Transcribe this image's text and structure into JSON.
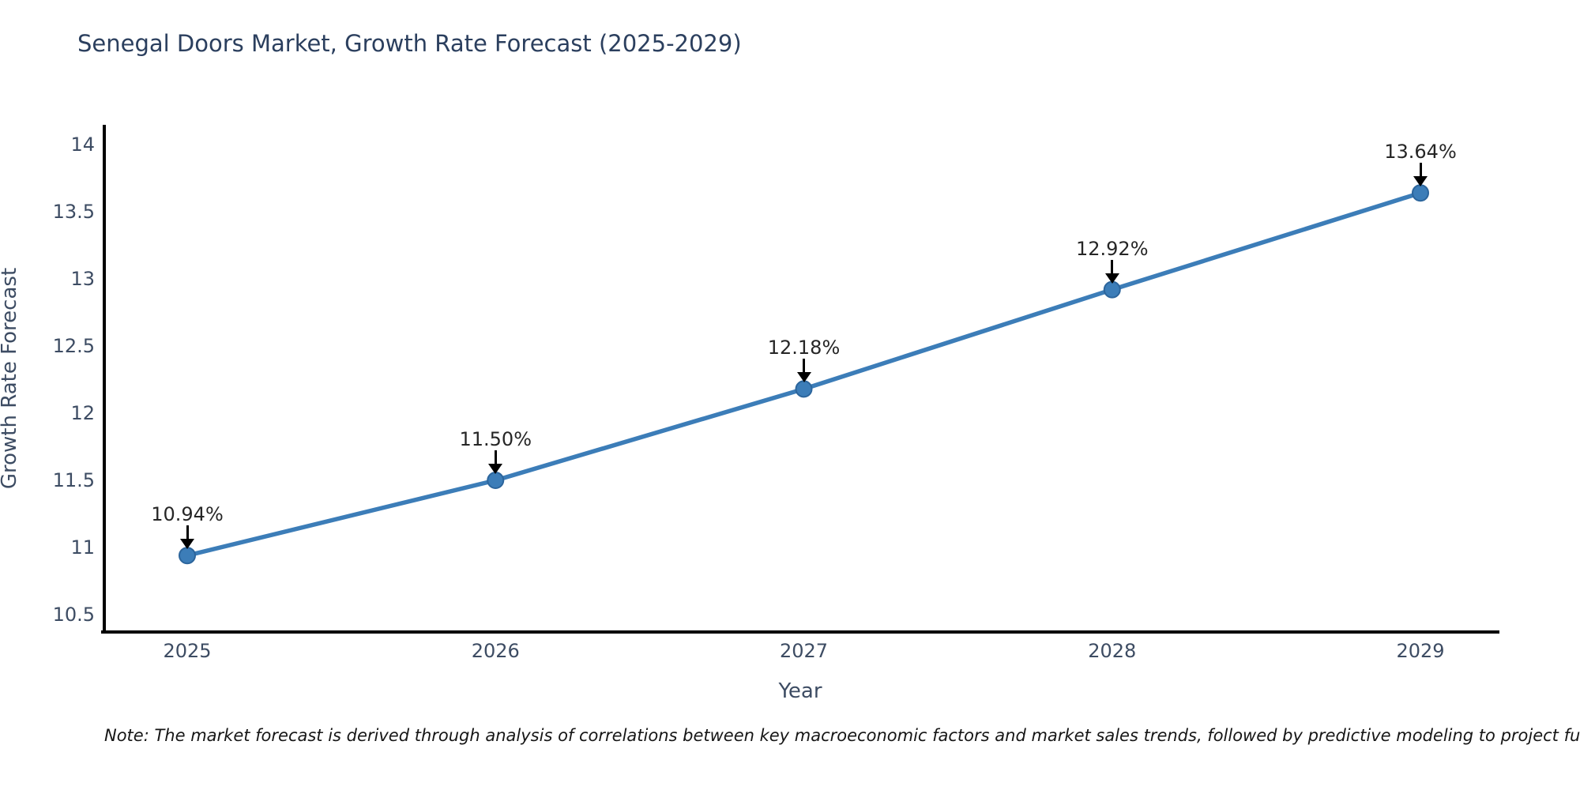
{
  "footnote": {
    "text": "Note: The market forecast is derived through analysis of correlations between key macroeconomic factors and market sales trends, followed by predictive modeling to project future sal"
  },
  "chart_data": {
    "type": "line",
    "title": "Senegal Doors Market, Growth Rate Forecast (2025-2029)",
    "xlabel": "Year",
    "ylabel": "Growth Rate Forecast",
    "categories": [
      "2025",
      "2026",
      "2027",
      "2028",
      "2029"
    ],
    "series": [
      {
        "name": "Growth Rate Forecast",
        "values": [
          10.94,
          11.5,
          12.18,
          12.92,
          13.64
        ]
      }
    ],
    "point_labels": [
      "10.94%",
      "11.50%",
      "12.18%",
      "12.92%",
      "13.64%"
    ],
    "ylim": [
      10.37,
      14.15
    ],
    "yticks": [
      10.5,
      11,
      11.5,
      12,
      12.5,
      13,
      13.5,
      14
    ],
    "ytick_labels": [
      "10.5",
      "11",
      "11.5",
      "12",
      "12.5",
      "13",
      "13.5",
      "14"
    ],
    "grid": false,
    "legend": false,
    "marker": "circle",
    "annotation_arrows": true,
    "colors": {
      "line": "#3c7db8",
      "marker_fill": "#3c7db8",
      "marker_edge": "#2c659c",
      "annotation_text": "#262626",
      "arrow": "#000000",
      "axis_line": "#000000",
      "tick_label": "#3d4c63",
      "axis_title": "#3d4c63",
      "title": "#2b3f5e"
    }
  }
}
